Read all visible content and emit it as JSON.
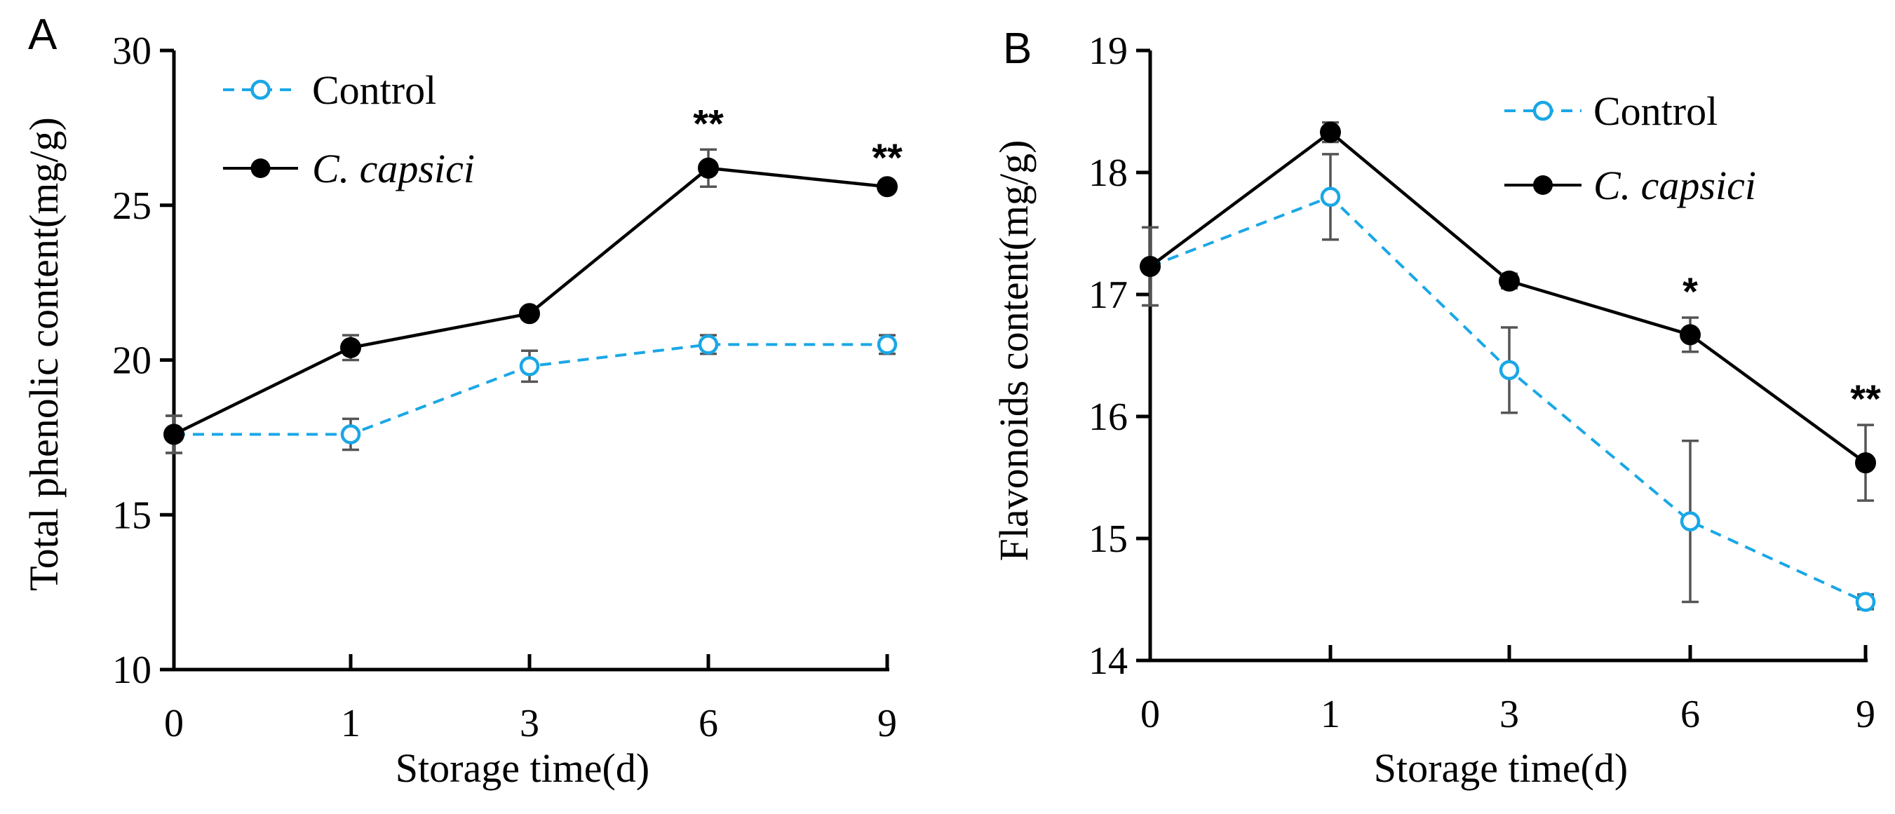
{
  "chart_data": [
    {
      "type": "line",
      "panel_label": "A",
      "xlabel": "Storage time(d)",
      "ylabel": "Total phenolic content(mg/g)",
      "categories": [
        "0",
        "1",
        "3",
        "6",
        "9"
      ],
      "ylim": [
        10,
        30
      ],
      "yticks": [
        "10",
        "15",
        "20",
        "25",
        "30"
      ],
      "legend_position": "top-left",
      "series": [
        {
          "name": "Control",
          "color": "#1aa7e6",
          "line_style": "dashed",
          "marker": "open-circle",
          "values": [
            17.6,
            17.6,
            19.8,
            20.5,
            20.5
          ],
          "errors": [
            0.6,
            0.5,
            0.5,
            0.3,
            0.3
          ]
        },
        {
          "name": "C. capsici",
          "color": "#000000",
          "line_style": "solid",
          "marker": "filled-circle",
          "values": [
            17.6,
            20.4,
            21.5,
            26.2,
            25.6
          ],
          "errors": [
            0.6,
            0.4,
            0.15,
            0.6,
            0.1
          ]
        }
      ],
      "significance": [
        {
          "category": "6",
          "mark": "**"
        },
        {
          "category": "9",
          "mark": "**"
        }
      ]
    },
    {
      "type": "line",
      "panel_label": "B",
      "xlabel": "Storage time(d)",
      "ylabel": "Flavonoids content(mg/g)",
      "categories": [
        "0",
        "1",
        "3",
        "6",
        "9"
      ],
      "ylim": [
        14,
        19
      ],
      "yticks": [
        "14",
        "15",
        "16",
        "17",
        "18",
        "19"
      ],
      "legend_position": "top-right",
      "series": [
        {
          "name": "Control",
          "color": "#1aa7e6",
          "line_style": "dashed",
          "marker": "open-circle",
          "values": [
            17.23,
            17.8,
            16.38,
            15.14,
            14.48
          ],
          "errors": [
            0.32,
            0.35,
            0.35,
            0.66,
            0.06
          ]
        },
        {
          "name": "C. capsici",
          "color": "#000000",
          "line_style": "solid",
          "marker": "filled-circle",
          "values": [
            17.23,
            18.33,
            17.11,
            16.67,
            15.62
          ],
          "errors": [
            0.32,
            0.08,
            0.06,
            0.14,
            0.31
          ]
        }
      ],
      "significance": [
        {
          "category": "6",
          "mark": "*"
        },
        {
          "category": "9",
          "mark": "**"
        }
      ]
    }
  ]
}
